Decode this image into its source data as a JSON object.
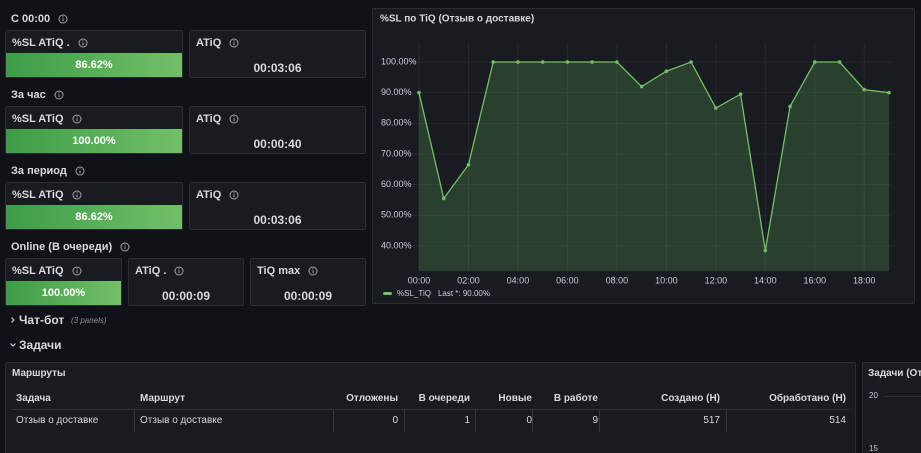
{
  "sections": [
    {
      "title": "C 00:00",
      "panels": [
        {
          "title": "%SL ATiQ .",
          "value": "86.62%"
        },
        {
          "title": "ATiQ",
          "value": "00:03:06"
        }
      ]
    },
    {
      "title": "За час",
      "panels": [
        {
          "title": "%SL ATiQ",
          "value": "100.00%"
        },
        {
          "title": "ATiQ",
          "value": "00:00:40"
        }
      ]
    },
    {
      "title": "За период",
      "panels": [
        {
          "title": "%SL ATiQ",
          "value": "86.62%"
        },
        {
          "title": "ATiQ",
          "value": "00:03:06"
        }
      ]
    },
    {
      "title": "Online (В очереди)",
      "panels": [
        {
          "title": "%SL ATiQ",
          "value": "100.00%"
        },
        {
          "title": "ATiQ .",
          "value": "00:00:09"
        },
        {
          "title": "TiQ max",
          "value": "00:00:09"
        }
      ]
    }
  ],
  "chart_data": {
    "type": "line",
    "title": "%SL по TiQ (Отзыв о доставке)",
    "x": [
      0,
      1,
      2,
      3,
      4,
      5,
      6,
      7,
      8,
      9,
      10,
      11,
      12,
      13,
      14,
      15,
      16,
      17,
      18,
      19
    ],
    "series": [
      {
        "name": "%SL_TiQ",
        "color": "#73bf69",
        "values": [
          90,
          55.5,
          66.5,
          100,
          100,
          100,
          100,
          100,
          100,
          92,
          97,
          100,
          85,
          89.5,
          38.5,
          85.5,
          100,
          100,
          91,
          90
        ]
      }
    ],
    "legend_stat": "Last *: 90.00%",
    "xlim": [
      0,
      19
    ],
    "xticks": [
      {
        "value": 0,
        "label": "00:00"
      },
      {
        "value": 2,
        "label": "02:00"
      },
      {
        "value": 4,
        "label": "04:00"
      },
      {
        "value": 6,
        "label": "06:00"
      },
      {
        "value": 8,
        "label": "08:00"
      },
      {
        "value": 10,
        "label": "10:00"
      },
      {
        "value": 12,
        "label": "12:00"
      },
      {
        "value": 14,
        "label": "14:00"
      },
      {
        "value": 16,
        "label": "16:00"
      },
      {
        "value": 18,
        "label": "18:00"
      }
    ],
    "ylim": [
      31.85,
      103.59
    ],
    "yticks": [
      {
        "value": 40,
        "label": "40.00%"
      },
      {
        "value": 50,
        "label": "50.00%"
      },
      {
        "value": 60,
        "label": "60.00%"
      },
      {
        "value": 70,
        "label": "70.00%"
      },
      {
        "value": 80,
        "label": "80.00%"
      },
      {
        "value": 90,
        "label": "90.00%"
      },
      {
        "value": 100,
        "label": "100.00%"
      }
    ],
    "grid": true
  },
  "rows": [
    {
      "title": "Чат-бот",
      "note": "(3 panels)"
    },
    {
      "title": "Задачи"
    }
  ],
  "table": {
    "title": "Маршруты",
    "columns": [
      "Задача",
      "Маршрут",
      "Отложены",
      "В очереди",
      "Новые",
      "В работе",
      "Создано (H)",
      "Обработано (H)"
    ],
    "rows": [
      [
        "Отзыв о доставке",
        "Отзыв о доставке",
        0,
        1,
        0,
        9,
        517,
        514
      ]
    ]
  },
  "side_panel": {
    "title": "Задачи (От",
    "yticks": [
      "20",
      "15"
    ]
  }
}
